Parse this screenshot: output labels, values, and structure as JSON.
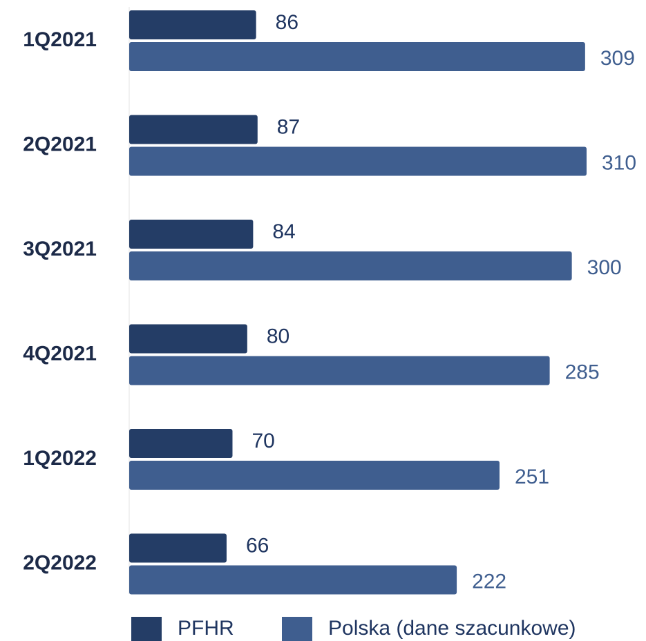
{
  "chart_data": {
    "type": "bar",
    "orientation": "horizontal",
    "categories": [
      "1Q2021",
      "2Q2021",
      "3Q2021",
      "4Q2021",
      "1Q2022",
      "2Q2022"
    ],
    "series": [
      {
        "name": "PFHR",
        "values": [
          86,
          87,
          84,
          80,
          70,
          66
        ],
        "color": "#243d66"
      },
      {
        "name": "Polska (dane szacunkowe)",
        "values": [
          309,
          310,
          300,
          285,
          251,
          222
        ],
        "color": "#3f5e8f"
      }
    ],
    "title": "",
    "xlabel": "",
    "ylabel": "",
    "xlim": [
      0,
      310
    ],
    "grid": false,
    "legend_position": "bottom"
  }
}
